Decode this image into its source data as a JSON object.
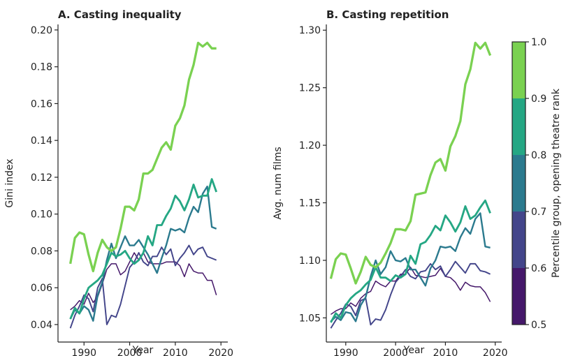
{
  "chart_data": [
    {
      "type": "line",
      "title": "A. Casting inequality",
      "xlabel": "Year",
      "ylabel": "Gini index",
      "x": [
        1987,
        1988,
        1989,
        1990,
        1991,
        1992,
        1993,
        1994,
        1995,
        1996,
        1997,
        1998,
        1999,
        2000,
        2001,
        2002,
        2003,
        2004,
        2005,
        2006,
        2007,
        2008,
        2009,
        2010,
        2011,
        2012,
        2013,
        2014,
        2015,
        2016,
        2017,
        2018,
        2019
      ],
      "xlim": [
        1984.3,
        2021.5
      ],
      "xticks": [
        1990,
        2000,
        2010,
        2020
      ],
      "ylim": [
        0.0305,
        0.203
      ],
      "yticks": [
        0.04,
        0.06,
        0.08,
        {
          "value": 0.1,
          "label": "0.10"
        },
        0.12,
        0.14,
        0.16,
        0.18,
        {
          "value": 0.2,
          "label": "0.20"
        }
      ],
      "series": [
        {
          "color": "#45186a",
          "values": [
            0.048,
            0.05,
            0.053,
            0.051,
            0.057,
            0.052,
            0.055,
            0.062,
            0.07,
            0.073,
            0.073,
            0.067,
            0.069,
            0.074,
            0.079,
            0.075,
            0.079,
            0.074,
            0.073,
            0.073,
            0.073,
            0.074,
            0.074,
            0.074,
            0.072,
            0.066,
            0.073,
            0.069,
            0.068,
            0.068,
            0.064,
            0.064,
            0.056
          ]
        },
        {
          "color": "#43458a",
          "values": [
            0.038,
            0.045,
            0.05,
            0.056,
            0.054,
            0.047,
            0.06,
            0.065,
            0.04,
            0.045,
            0.044,
            0.051,
            0.061,
            0.071,
            0.074,
            0.079,
            0.074,
            0.072,
            0.077,
            0.077,
            0.082,
            0.078,
            0.081,
            0.072,
            0.076,
            0.079,
            0.083,
            0.078,
            0.081,
            0.082,
            0.077,
            0.076,
            0.075
          ]
        },
        {
          "color": "#2b7a8e",
          "values": [
            0.043,
            0.048,
            0.046,
            0.05,
            0.048,
            0.042,
            0.056,
            0.063,
            0.075,
            0.084,
            0.076,
            0.082,
            0.088,
            0.083,
            0.083,
            0.086,
            0.082,
            0.078,
            0.073,
            0.068,
            0.076,
            0.083,
            0.092,
            0.091,
            0.092,
            0.09,
            0.098,
            0.104,
            0.101,
            0.111,
            0.115,
            0.093,
            0.092
          ]
        },
        {
          "color": "#25a784",
          "values": [
            0.043,
            0.049,
            0.046,
            0.054,
            0.06,
            0.062,
            0.064,
            0.067,
            0.073,
            0.079,
            0.077,
            0.078,
            0.08,
            0.076,
            0.073,
            0.075,
            0.079,
            0.088,
            0.083,
            0.094,
            0.094,
            0.099,
            0.103,
            0.11,
            0.107,
            0.102,
            0.108,
            0.116,
            0.109,
            0.11,
            0.11,
            0.119,
            0.112
          ]
        },
        {
          "color": "#7ad151",
          "values": [
            0.073,
            0.087,
            0.09,
            0.089,
            0.078,
            0.069,
            0.079,
            0.086,
            0.082,
            0.08,
            0.082,
            0.092,
            0.104,
            0.104,
            0.102,
            0.108,
            0.122,
            0.122,
            0.124,
            0.13,
            0.136,
            0.139,
            0.135,
            0.148,
            0.152,
            0.159,
            0.173,
            0.181,
            0.193,
            0.191,
            0.193,
            0.19,
            0.19
          ]
        }
      ]
    },
    {
      "type": "line",
      "title": "B. Casting repetition",
      "xlabel": "Year",
      "ylabel": "Avg. num films",
      "x": [
        1987,
        1988,
        1989,
        1990,
        1991,
        1992,
        1993,
        1994,
        1995,
        1996,
        1997,
        1998,
        1999,
        2000,
        2001,
        2002,
        2003,
        2004,
        2005,
        2006,
        2007,
        2008,
        2009,
        2010,
        2011,
        2012,
        2013,
        2014,
        2015,
        2016,
        2017,
        2018,
        2019
      ],
      "xlim": [
        1986.1,
        2021.3
      ],
      "xticks": [
        1990,
        2000,
        2010,
        2020
      ],
      "ylim": [
        1.029,
        1.305
      ],
      "yticks": [
        1.05,
        {
          "value": 1.1,
          "label": "1.10"
        },
        1.15,
        {
          "value": 1.2,
          "label": "1.20"
        },
        1.25,
        {
          "value": 1.3,
          "label": "1.30"
        }
      ],
      "series": [
        {
          "color": "#45186a",
          "values": [
            1.053,
            1.056,
            1.058,
            1.058,
            1.063,
            1.06,
            1.067,
            1.071,
            1.073,
            1.082,
            1.079,
            1.077,
            1.082,
            1.082,
            1.088,
            1.088,
            1.094,
            1.087,
            1.086,
            1.085,
            1.086,
            1.087,
            1.093,
            1.086,
            1.085,
            1.081,
            1.074,
            1.081,
            1.078,
            1.077,
            1.077,
            1.072,
            1.064
          ]
        },
        {
          "color": "#43458a",
          "values": [
            1.041,
            1.048,
            1.054,
            1.062,
            1.06,
            1.052,
            1.065,
            1.067,
            1.044,
            1.049,
            1.048,
            1.057,
            1.07,
            1.081,
            1.086,
            1.092,
            1.086,
            1.084,
            1.09,
            1.091,
            1.097,
            1.092,
            1.095,
            1.086,
            1.092,
            1.099,
            1.094,
            1.089,
            1.097,
            1.097,
            1.091,
            1.09,
            1.088
          ]
        },
        {
          "color": "#2b7a8e",
          "values": [
            1.047,
            1.051,
            1.048,
            1.055,
            1.054,
            1.047,
            1.061,
            1.068,
            1.086,
            1.1,
            1.088,
            1.094,
            1.108,
            1.1,
            1.099,
            1.102,
            1.092,
            1.092,
            1.085,
            1.078,
            1.093,
            1.1,
            1.112,
            1.111,
            1.112,
            1.108,
            1.12,
            1.128,
            1.123,
            1.136,
            1.141,
            1.112,
            1.111
          ]
        },
        {
          "color": "#25a784",
          "values": [
            1.046,
            1.054,
            1.05,
            1.061,
            1.067,
            1.071,
            1.074,
            1.079,
            1.083,
            1.094,
            1.085,
            1.085,
            1.082,
            1.087,
            1.085,
            1.088,
            1.104,
            1.097,
            1.114,
            1.116,
            1.122,
            1.13,
            1.126,
            1.139,
            1.133,
            1.125,
            1.133,
            1.147,
            1.136,
            1.139,
            1.146,
            1.152,
            1.141
          ]
        },
        {
          "color": "#7ad151",
          "values": [
            1.084,
            1.101,
            1.106,
            1.105,
            1.093,
            1.08,
            1.09,
            1.103,
            1.096,
            1.094,
            1.098,
            1.106,
            1.115,
            1.127,
            1.127,
            1.126,
            1.134,
            1.157,
            1.158,
            1.159,
            1.174,
            1.185,
            1.188,
            1.178,
            1.199,
            1.208,
            1.221,
            1.253,
            1.266,
            1.289,
            1.284,
            1.289,
            1.278
          ]
        }
      ],
      "colorbar": {
        "label": "Percentile group, opening theatre rank",
        "clim": [
          0.5,
          1
        ],
        "ticks": [
          0.5,
          0.6,
          0.7,
          0.8,
          0.9,
          {
            "value": 1,
            "label": "1.0"
          }
        ]
      }
    }
  ]
}
